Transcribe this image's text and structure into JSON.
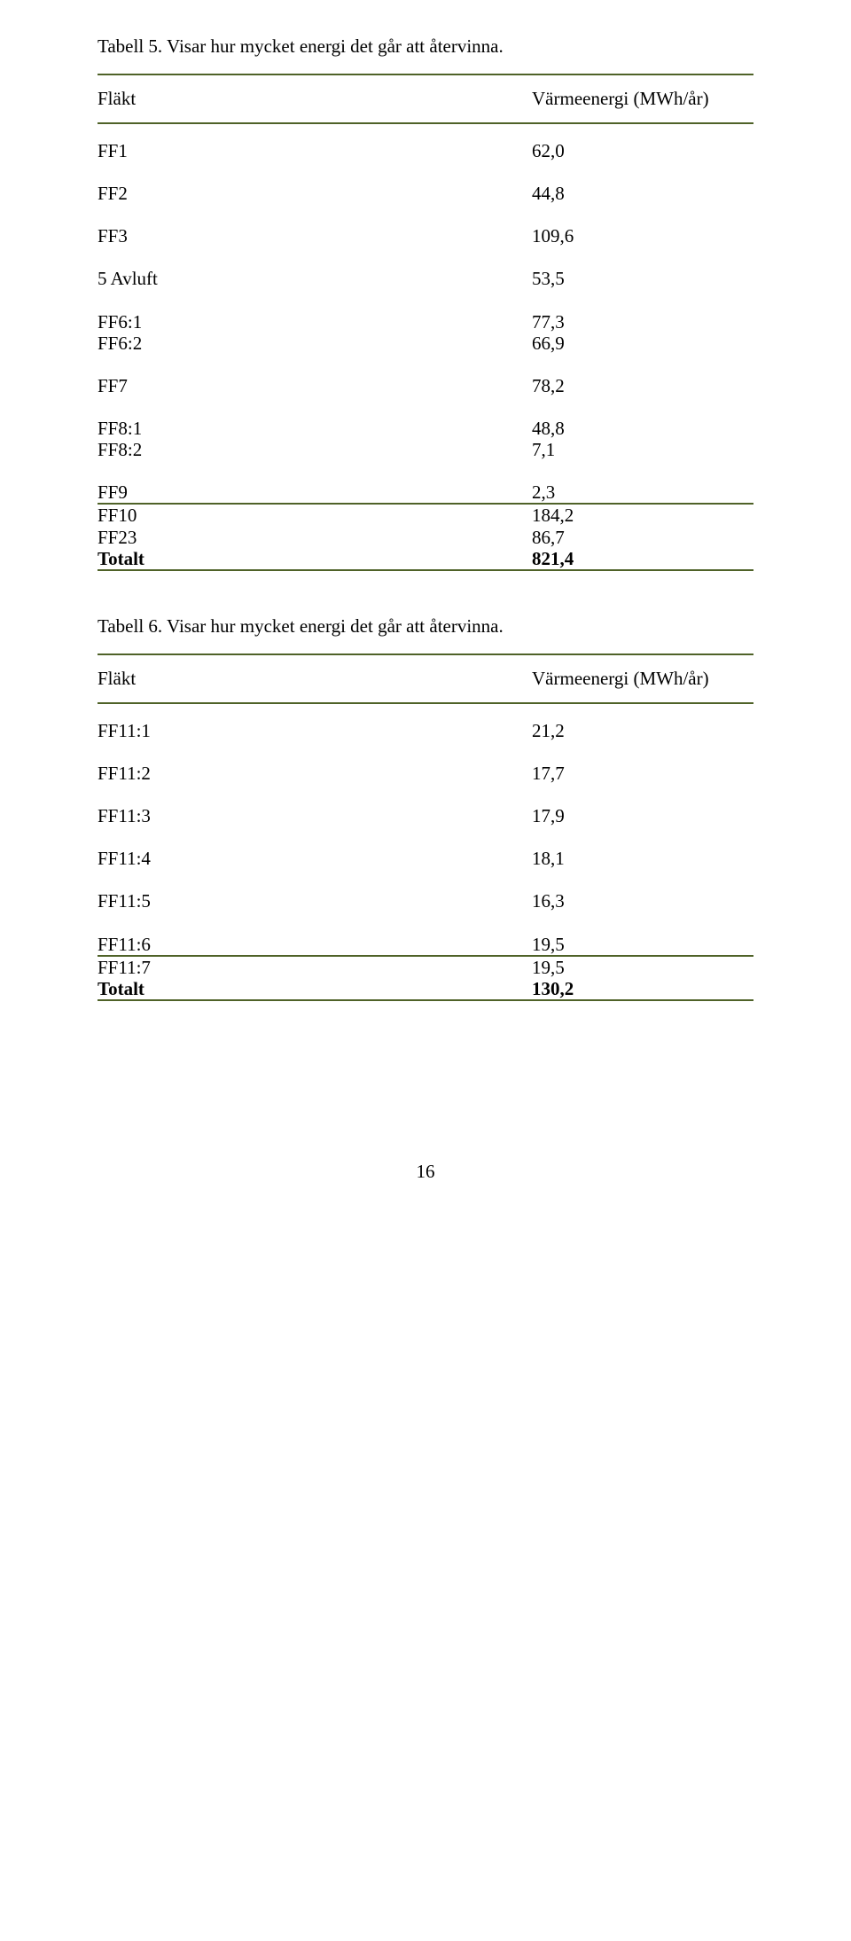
{
  "table5": {
    "caption": "Tabell 5. Visar hur mycket energi det går att återvinna.",
    "header_left": "Fläkt",
    "header_right": "Värmeenergi (MWh/år)",
    "border_color": "#4f6228",
    "groups": [
      [
        {
          "label": "FF1",
          "value": "62,0"
        }
      ],
      [
        {
          "label": "FF2",
          "value": "44,8"
        }
      ],
      [
        {
          "label": "FF3",
          "value": "109,6"
        }
      ],
      [
        {
          "label": "5 Avluft",
          "value": "53,5"
        }
      ],
      [
        {
          "label": "FF6:1",
          "value": "77,3"
        },
        {
          "label": "FF6:2",
          "value": "66,9"
        }
      ],
      [
        {
          "label": "FF7",
          "value": "78,2"
        }
      ],
      [
        {
          "label": "FF8:1",
          "value": "48,8"
        },
        {
          "label": "FF8:2",
          "value": "7,1"
        }
      ],
      [
        {
          "label": "FF9",
          "value": "2,3"
        }
      ]
    ],
    "final_group": [
      {
        "label": "FF10",
        "value": "184,2"
      },
      {
        "label": "FF23",
        "value": "86,7"
      }
    ],
    "total_label": "Totalt",
    "total_value": "821,4"
  },
  "table6": {
    "caption": "Tabell 6. Visar hur mycket energi det går att återvinna.",
    "header_left": "Fläkt",
    "header_right": "Värmeenergi (MWh/år)",
    "border_color": "#4f6228",
    "groups": [
      [
        {
          "label": "FF11:1",
          "value": "21,2"
        }
      ],
      [
        {
          "label": "FF11:2",
          "value": "17,7"
        }
      ],
      [
        {
          "label": "FF11:3",
          "value": "17,9"
        }
      ],
      [
        {
          "label": "FF11:4",
          "value": "18,1"
        }
      ],
      [
        {
          "label": "FF11:5",
          "value": "16,3"
        }
      ],
      [
        {
          "label": "FF11:6",
          "value": "19,5"
        }
      ]
    ],
    "final_group": [
      {
        "label": "FF11:7",
        "value": "19,5"
      }
    ],
    "total_label": "Totalt",
    "total_value": "130,2"
  },
  "page_number": "16"
}
